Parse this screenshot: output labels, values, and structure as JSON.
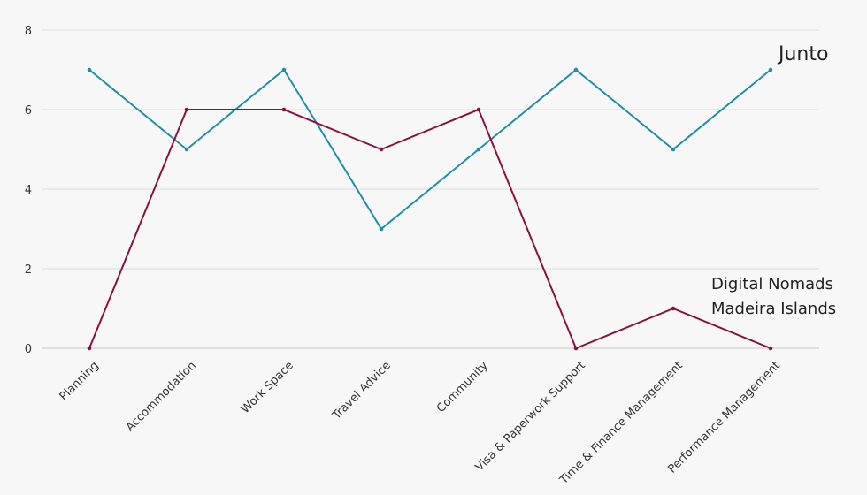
{
  "chart_data": {
    "type": "line",
    "categories": [
      "Planning",
      "Accommodation",
      "Work Space",
      "Travel Advice",
      "Community",
      "Visa & Paperwork Support",
      "Time & Finance Management",
      "Performance Management"
    ],
    "series": [
      {
        "name": "Junto",
        "color": "#1e8fa6",
        "values": [
          7,
          5,
          7,
          3,
          5,
          7,
          5,
          7
        ]
      },
      {
        "name": "Digital Nomads Madeira Islands",
        "color": "#8c0f3f",
        "values": [
          0,
          6,
          6,
          5,
          6,
          0,
          1,
          0
        ]
      }
    ],
    "ylim": [
      0,
      8
    ],
    "yticks": [
      "0",
      "2",
      "4",
      "6",
      "8"
    ],
    "grid": true,
    "annotations": {
      "junto": "Junto",
      "dnmi_line1": "Digital Nomads",
      "dnmi_line2": "Madeira Islands"
    }
  }
}
